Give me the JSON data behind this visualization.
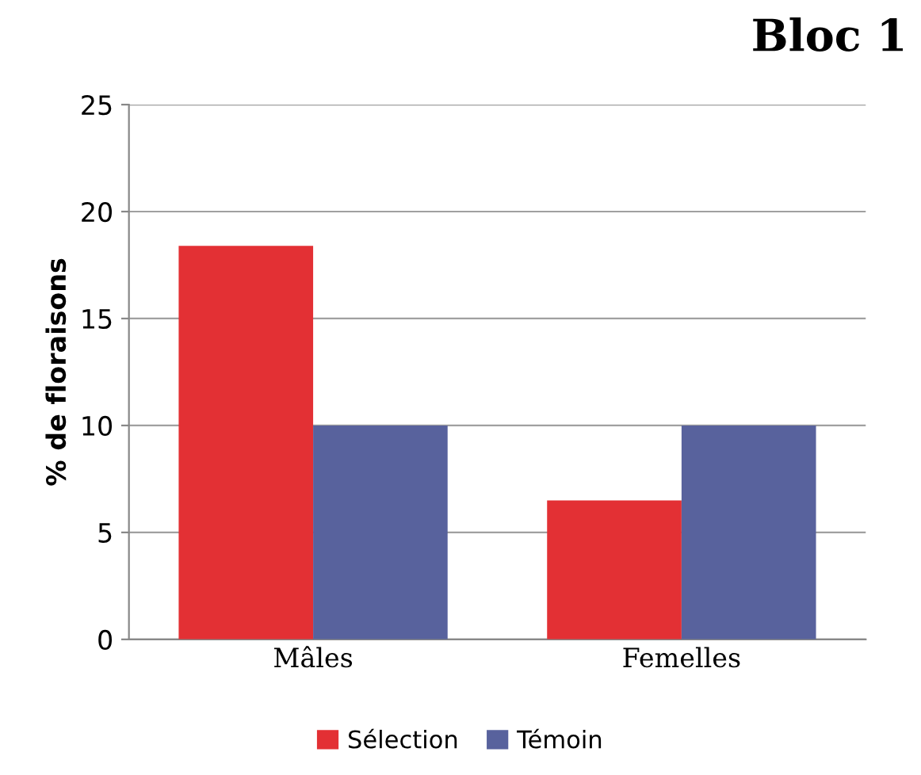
{
  "chart_data": {
    "type": "bar",
    "title": "Bloc 1",
    "ylabel": "% de floraisons",
    "categories": [
      "Mâles",
      "Femelles"
    ],
    "series": [
      {
        "name": "Sélection",
        "color": "#e33034",
        "values": [
          18.4,
          6.5
        ]
      },
      {
        "name": "Témoin",
        "color": "#58629d",
        "values": [
          10,
          10
        ]
      }
    ],
    "ylim": [
      0,
      25
    ],
    "yticks": [
      0,
      5,
      10,
      15,
      20,
      25
    ],
    "grid": "y",
    "legend": "bottom"
  }
}
